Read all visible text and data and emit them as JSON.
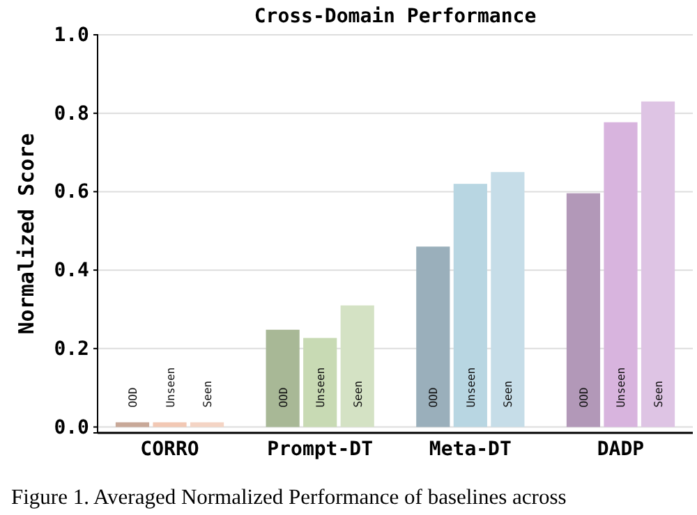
{
  "chart_data": {
    "type": "bar",
    "title": "Cross-Domain Performance",
    "ylabel": "Normalized Score",
    "categories": [
      "CORRO",
      "Prompt-DT",
      "Meta-DT",
      "DADP"
    ],
    "series": [
      {
        "name": "OOD",
        "colors": [
          "#c8a898",
          "#a8b896",
          "#9aafbb",
          "#b298b8"
        ],
        "values": [
          0.012,
          0.248,
          0.46,
          0.596
        ]
      },
      {
        "name": "Unseen",
        "colors": [
          "#f2c8b4",
          "#c8dab4",
          "#b8d6e2",
          "#d8b4de"
        ],
        "values": [
          0.012,
          0.227,
          0.62,
          0.777
        ]
      },
      {
        "name": "Seen",
        "colors": [
          "#f4d4c4",
          "#d4e2c4",
          "#c6dde8",
          "#dec4e4"
        ],
        "values": [
          0.012,
          0.31,
          0.65,
          0.83
        ]
      }
    ],
    "ylim": [
      -0.015,
      1.0
    ],
    "yticks": [
      {
        "value": 0,
        "label": "0.0"
      },
      {
        "value": 0.2,
        "label": "0.2"
      },
      {
        "value": 0.4,
        "label": "0.4"
      },
      {
        "value": 0.6,
        "label": "0.6"
      },
      {
        "value": 0.8,
        "label": "0.8"
      },
      {
        "value": 1,
        "label": "1.0"
      }
    ],
    "grid": "y",
    "annotations": [
      "Figure 1. Averaged Normalized Performance of baselines across"
    ]
  }
}
